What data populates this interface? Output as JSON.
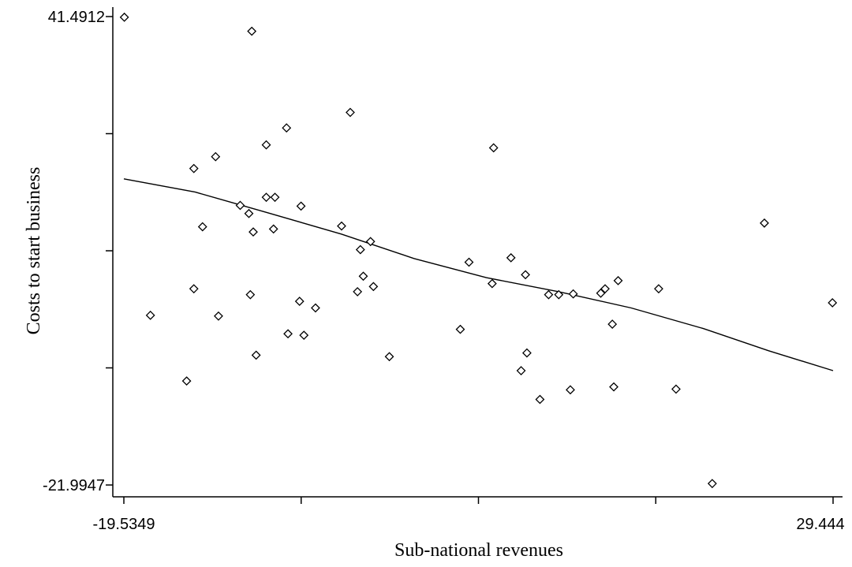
{
  "chart_data": {
    "type": "scatter",
    "xlabel": "Sub-national revenues",
    "ylabel": "Costs to start business",
    "xlim": [
      -19.5349,
      29.444
    ],
    "ylim": [
      -21.9947,
      41.4912
    ],
    "x_tick_labels": [
      "-19.5349",
      "29.444"
    ],
    "y_tick_labels": [
      "41.4912",
      "-21.9947"
    ],
    "grid": false,
    "legend": "none",
    "points": [
      {
        "x": -19.5,
        "y": 41.4
      },
      {
        "x": -10.7,
        "y": 39.5
      },
      {
        "x": -3.9,
        "y": 28.5
      },
      {
        "x": -8.3,
        "y": 26.4
      },
      {
        "x": -9.7,
        "y": 24.1
      },
      {
        "x": 6.0,
        "y": 23.7
      },
      {
        "x": -13.2,
        "y": 22.5
      },
      {
        "x": -14.7,
        "y": 20.9
      },
      {
        "x": -9.1,
        "y": 17.0
      },
      {
        "x": -9.7,
        "y": 17.0
      },
      {
        "x": -11.5,
        "y": 15.9
      },
      {
        "x": -7.3,
        "y": 15.8
      },
      {
        "x": -10.9,
        "y": 14.8
      },
      {
        "x": -14.1,
        "y": 13.0
      },
      {
        "x": -4.5,
        "y": 13.1
      },
      {
        "x": -9.2,
        "y": 12.7
      },
      {
        "x": -10.6,
        "y": 12.3
      },
      {
        "x": -2.5,
        "y": 11.0
      },
      {
        "x": -3.2,
        "y": 9.9
      },
      {
        "x": 4.3,
        "y": 8.2
      },
      {
        "x": 7.2,
        "y": 8.8
      },
      {
        "x": 24.7,
        "y": 13.5
      },
      {
        "x": -3.0,
        "y": 6.3
      },
      {
        "x": 8.2,
        "y": 6.5
      },
      {
        "x": -14.7,
        "y": 4.6
      },
      {
        "x": -10.8,
        "y": 3.8
      },
      {
        "x": -3.4,
        "y": 4.2
      },
      {
        "x": -2.3,
        "y": 4.9
      },
      {
        "x": 5.9,
        "y": 5.3
      },
      {
        "x": 9.8,
        "y": 3.8
      },
      {
        "x": 10.5,
        "y": 3.8
      },
      {
        "x": 11.5,
        "y": 3.9
      },
      {
        "x": 13.4,
        "y": 4.0
      },
      {
        "x": 13.7,
        "y": 4.6
      },
      {
        "x": 14.6,
        "y": 5.7
      },
      {
        "x": 17.4,
        "y": 4.6
      },
      {
        "x": -7.4,
        "y": 2.9
      },
      {
        "x": -6.3,
        "y": 2.0
      },
      {
        "x": 29.4,
        "y": 2.7
      },
      {
        "x": -17.7,
        "y": 1.0
      },
      {
        "x": -13.0,
        "y": 0.9
      },
      {
        "x": 14.2,
        "y": -0.2
      },
      {
        "x": 3.7,
        "y": -0.9
      },
      {
        "x": -8.2,
        "y": -1.5
      },
      {
        "x": -7.1,
        "y": -1.7
      },
      {
        "x": -10.4,
        "y": -4.4
      },
      {
        "x": -1.2,
        "y": -4.6
      },
      {
        "x": 8.3,
        "y": -4.1
      },
      {
        "x": 7.9,
        "y": -6.5
      },
      {
        "x": -15.2,
        "y": -7.9
      },
      {
        "x": 14.3,
        "y": -8.7
      },
      {
        "x": 11.3,
        "y": -9.1
      },
      {
        "x": 18.6,
        "y": -9.0
      },
      {
        "x": 9.2,
        "y": -10.4
      },
      {
        "x": 21.1,
        "y": -21.8
      }
    ],
    "fit_line": {
      "x": [
        -19.5349,
        -14.6,
        -9.6,
        -4.5,
        0.5,
        5.5,
        10.5,
        15.5,
        20.5,
        25.0,
        29.444
      ],
      "y": [
        19.5,
        17.7,
        14.9,
        12.0,
        8.7,
        6.1,
        4.2,
        2.0,
        -0.8,
        -3.8,
        -6.5
      ]
    }
  }
}
